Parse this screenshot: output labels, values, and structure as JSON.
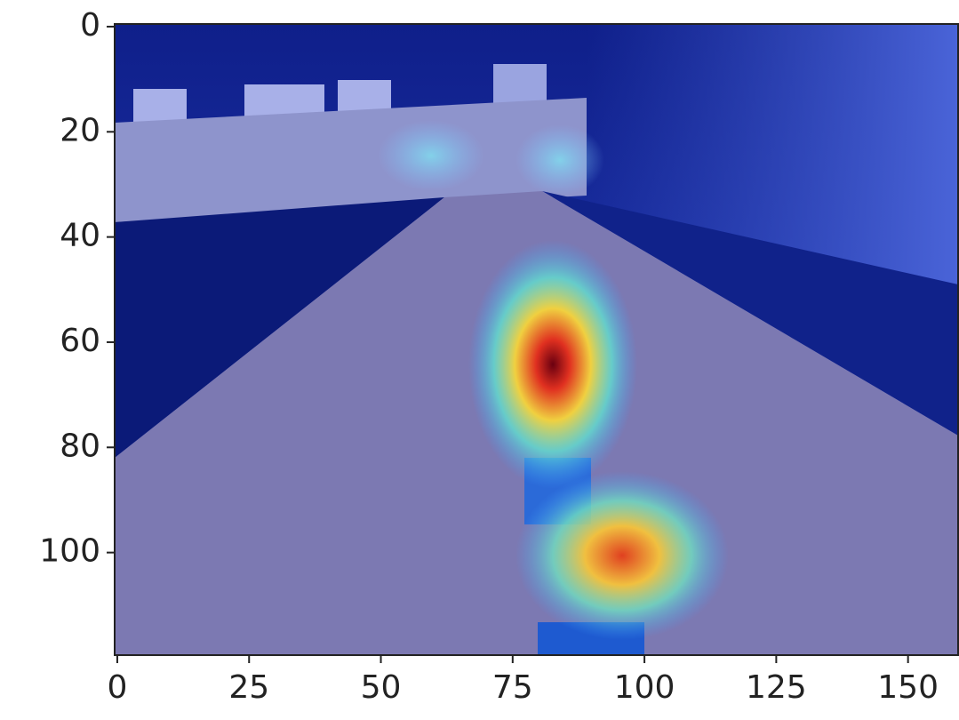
{
  "chart_data": {
    "type": "image",
    "xlim": [
      -0.5,
      159.5
    ],
    "ylim": [
      119.5,
      -0.5
    ],
    "xticks": [
      0,
      25,
      50,
      75,
      100,
      125,
      150
    ],
    "yticks": [
      0,
      20,
      40,
      60,
      80,
      100
    ]
  }
}
